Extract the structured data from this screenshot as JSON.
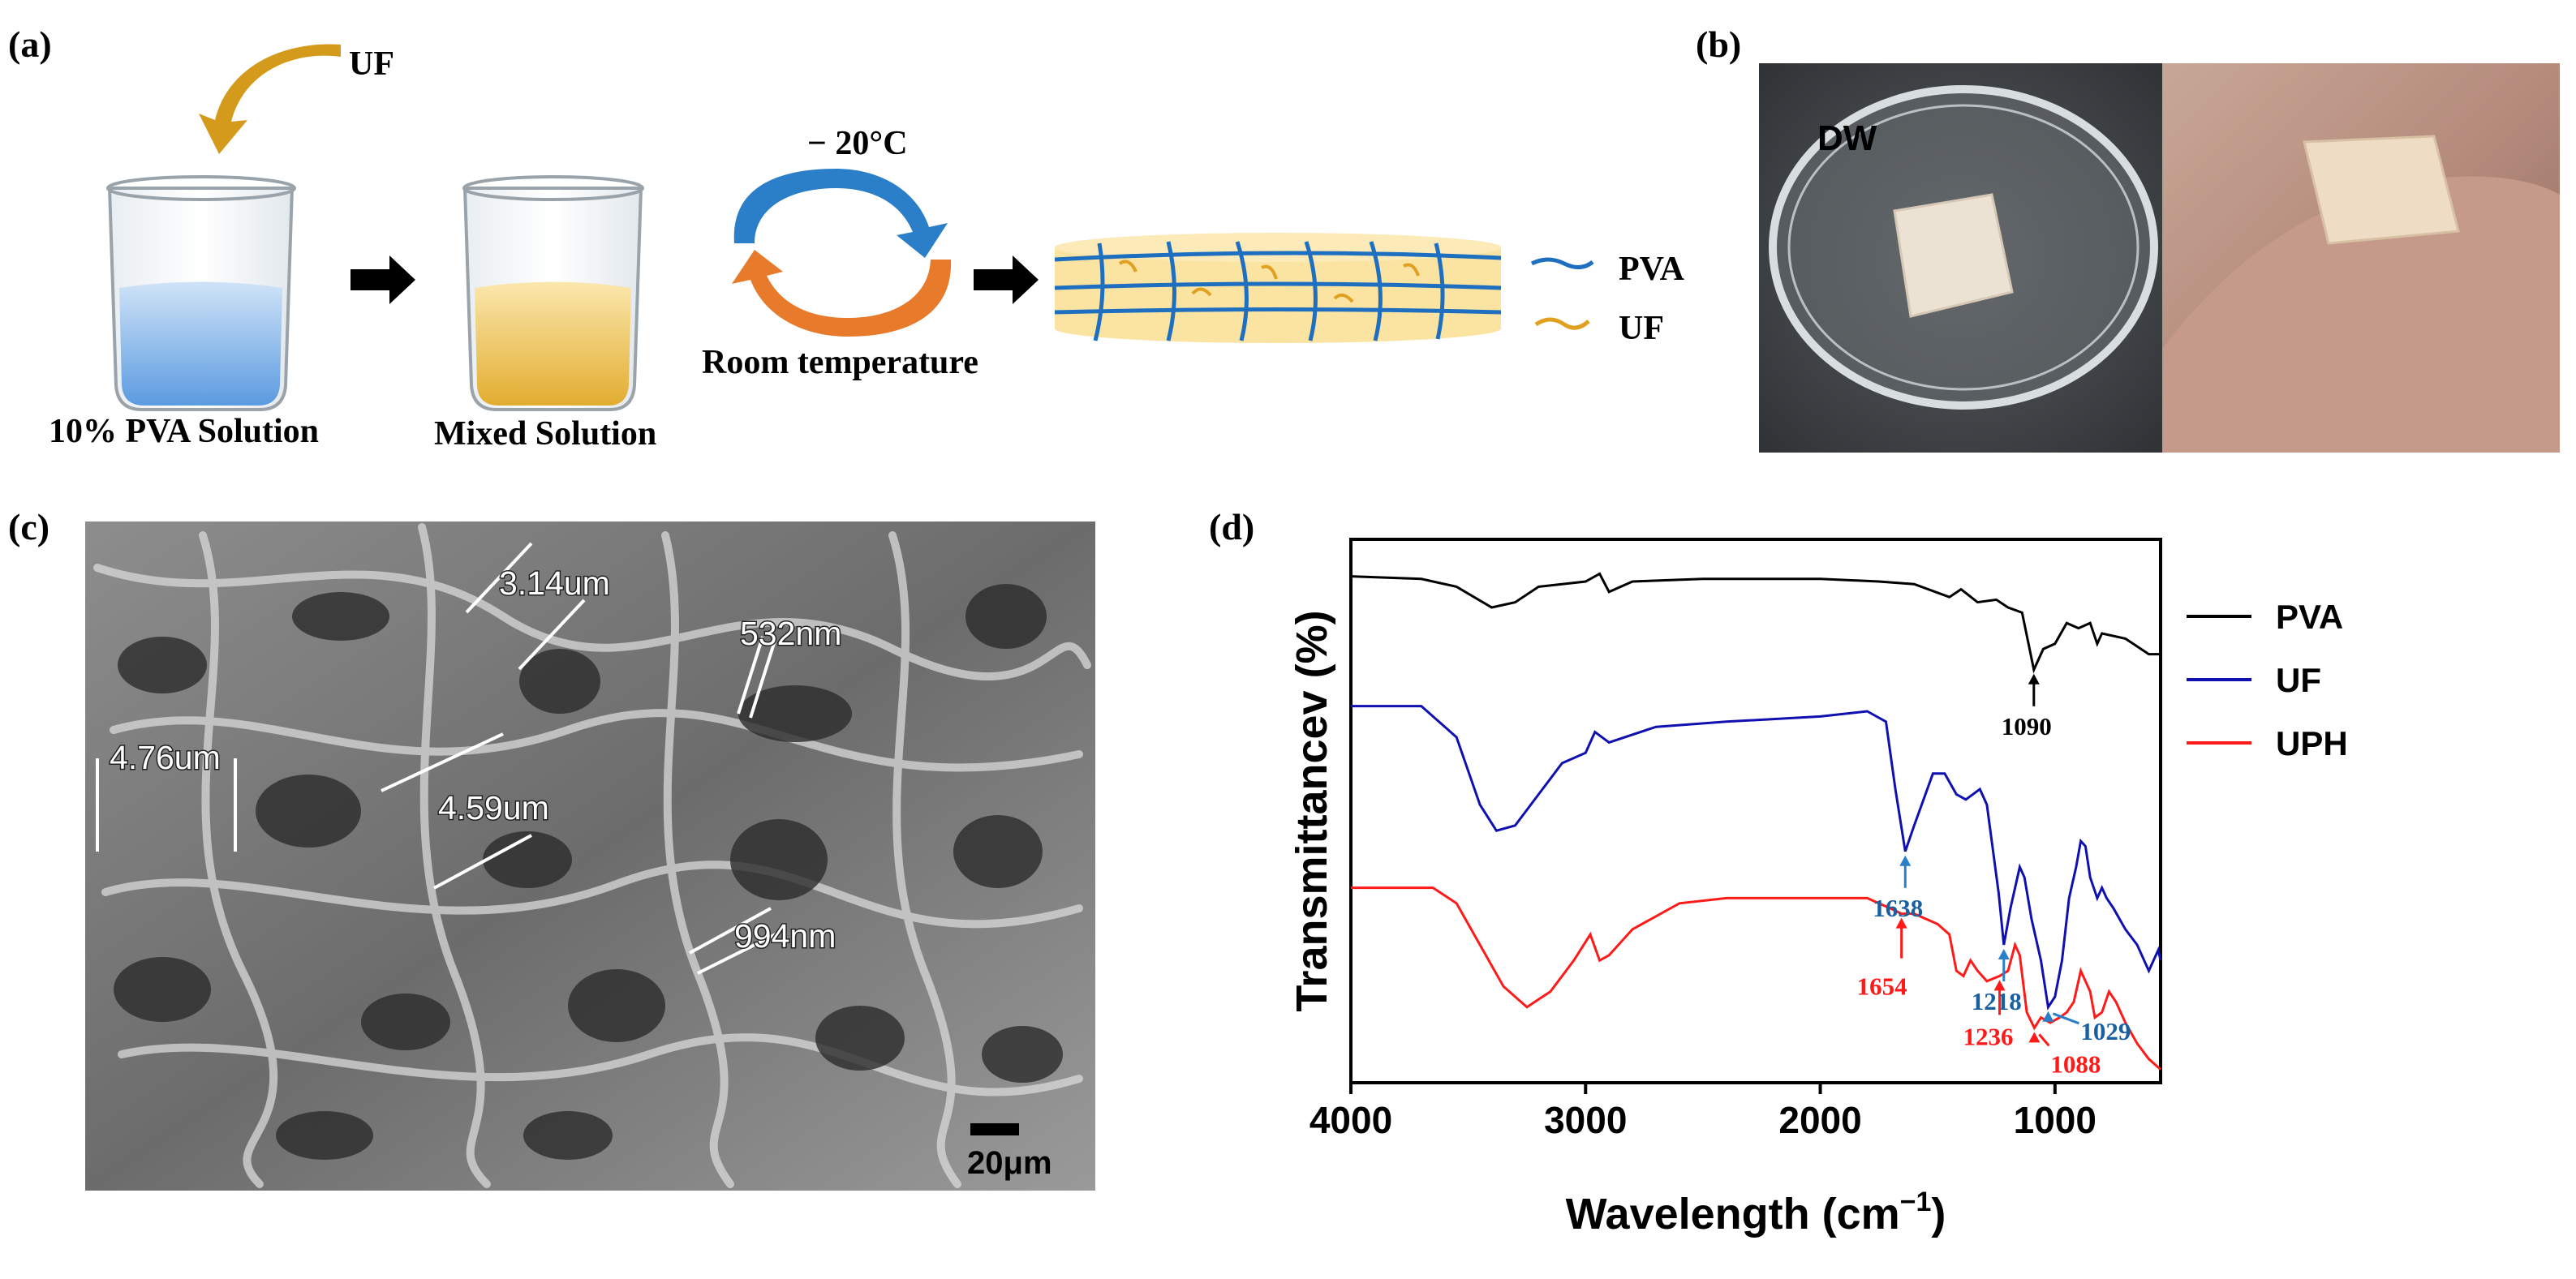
{
  "panels": {
    "a": {
      "label": "(a)",
      "additive": "UF",
      "beaker1_label": "10% PVA Solution",
      "beaker2_label": "Mixed Solution",
      "cycle_top": "− 20°C",
      "cycle_bottom": "Room temperature",
      "legend": [
        {
          "name": "PVA",
          "color": "#1f6fc0"
        },
        {
          "name": "UF",
          "color": "#e0a020"
        }
      ]
    },
    "b": {
      "label": "(b)",
      "dish_label": "DW"
    },
    "c": {
      "label": "(c)",
      "measurements": [
        "3.14um",
        "532nm",
        "4.76um",
        "4.59um",
        "994nm"
      ],
      "scale_bar": "20μm"
    },
    "d": {
      "label": "(d)"
    }
  },
  "chart_data": {
    "type": "line",
    "xlabel_main": "Wavelength (cm",
    "xlabel_sup": "−1",
    "xlabel_close": ")",
    "ylabel": "Transmittancev (%)",
    "xlim": [
      4000,
      550
    ],
    "x_reversed": true,
    "xticks": [
      4000,
      3000,
      2000,
      1000
    ],
    "legend_position": "right",
    "series": [
      {
        "name": "PVA",
        "color": "#000000",
        "points": [
          [
            4000,
            0.04
          ],
          [
            3700,
            0.045
          ],
          [
            3550,
            0.06
          ],
          [
            3400,
            0.1
          ],
          [
            3300,
            0.09
          ],
          [
            3200,
            0.06
          ],
          [
            3000,
            0.05
          ],
          [
            2940,
            0.035
          ],
          [
            2900,
            0.07
          ],
          [
            2800,
            0.05
          ],
          [
            2500,
            0.045
          ],
          [
            2000,
            0.045
          ],
          [
            1750,
            0.05
          ],
          [
            1600,
            0.055
          ],
          [
            1450,
            0.08
          ],
          [
            1400,
            0.065
          ],
          [
            1330,
            0.09
          ],
          [
            1250,
            0.085
          ],
          [
            1200,
            0.1
          ],
          [
            1140,
            0.11
          ],
          [
            1090,
            0.22
          ],
          [
            1050,
            0.18
          ],
          [
            1000,
            0.17
          ],
          [
            950,
            0.13
          ],
          [
            900,
            0.14
          ],
          [
            850,
            0.13
          ],
          [
            820,
            0.17
          ],
          [
            800,
            0.15
          ],
          [
            700,
            0.16
          ],
          [
            600,
            0.19
          ],
          [
            550,
            0.19
          ]
        ],
        "annotations": [
          {
            "x": 1090,
            "text": "1090"
          }
        ]
      },
      {
        "name": "UF",
        "color": "#1010b0",
        "points": [
          [
            4000,
            0.29
          ],
          [
            3700,
            0.29
          ],
          [
            3550,
            0.35
          ],
          [
            3450,
            0.48
          ],
          [
            3380,
            0.53
          ],
          [
            3300,
            0.52
          ],
          [
            3200,
            0.46
          ],
          [
            3100,
            0.4
          ],
          [
            3000,
            0.38
          ],
          [
            2960,
            0.34
          ],
          [
            2900,
            0.36
          ],
          [
            2700,
            0.33
          ],
          [
            2400,
            0.32
          ],
          [
            2000,
            0.31
          ],
          [
            1800,
            0.3
          ],
          [
            1720,
            0.32
          ],
          [
            1680,
            0.45
          ],
          [
            1638,
            0.57
          ],
          [
            1600,
            0.52
          ],
          [
            1520,
            0.42
          ],
          [
            1470,
            0.42
          ],
          [
            1420,
            0.46
          ],
          [
            1380,
            0.47
          ],
          [
            1320,
            0.45
          ],
          [
            1290,
            0.48
          ],
          [
            1240,
            0.65
          ],
          [
            1218,
            0.75
          ],
          [
            1190,
            0.68
          ],
          [
            1150,
            0.6
          ],
          [
            1130,
            0.62
          ],
          [
            1100,
            0.7
          ],
          [
            1060,
            0.78
          ],
          [
            1029,
            0.87
          ],
          [
            1000,
            0.85
          ],
          [
            970,
            0.78
          ],
          [
            940,
            0.66
          ],
          [
            910,
            0.6
          ],
          [
            890,
            0.55
          ],
          [
            870,
            0.56
          ],
          [
            850,
            0.62
          ],
          [
            820,
            0.66
          ],
          [
            800,
            0.64
          ],
          [
            780,
            0.66
          ],
          [
            750,
            0.68
          ],
          [
            700,
            0.72
          ],
          [
            650,
            0.75
          ],
          [
            600,
            0.8
          ],
          [
            560,
            0.76
          ],
          [
            550,
            0.78
          ]
        ],
        "annotations": [
          {
            "x": 1638,
            "text": "1638"
          },
          {
            "x": 1218,
            "text": "1218"
          },
          {
            "x": 1029,
            "text": "1029"
          }
        ]
      },
      {
        "name": "UPH",
        "color": "#ff1a1a",
        "points": [
          [
            4000,
            0.64
          ],
          [
            3650,
            0.64
          ],
          [
            3550,
            0.67
          ],
          [
            3450,
            0.75
          ],
          [
            3350,
            0.83
          ],
          [
            3250,
            0.87
          ],
          [
            3150,
            0.84
          ],
          [
            3050,
            0.78
          ],
          [
            2980,
            0.73
          ],
          [
            2940,
            0.78
          ],
          [
            2900,
            0.77
          ],
          [
            2800,
            0.72
          ],
          [
            2600,
            0.67
          ],
          [
            2400,
            0.66
          ],
          [
            2000,
            0.66
          ],
          [
            1800,
            0.66
          ],
          [
            1700,
            0.68
          ],
          [
            1654,
            0.69
          ],
          [
            1600,
            0.69
          ],
          [
            1500,
            0.71
          ],
          [
            1450,
            0.73
          ],
          [
            1420,
            0.8
          ],
          [
            1390,
            0.81
          ],
          [
            1360,
            0.78
          ],
          [
            1330,
            0.8
          ],
          [
            1290,
            0.82
          ],
          [
            1236,
            0.81
          ],
          [
            1200,
            0.8
          ],
          [
            1170,
            0.75
          ],
          [
            1150,
            0.77
          ],
          [
            1120,
            0.88
          ],
          [
            1088,
            0.91
          ],
          [
            1060,
            0.89
          ],
          [
            1020,
            0.9
          ],
          [
            980,
            0.89
          ],
          [
            950,
            0.88
          ],
          [
            920,
            0.86
          ],
          [
            890,
            0.8
          ],
          [
            870,
            0.82
          ],
          [
            850,
            0.84
          ],
          [
            830,
            0.89
          ],
          [
            800,
            0.88
          ],
          [
            770,
            0.84
          ],
          [
            740,
            0.86
          ],
          [
            700,
            0.9
          ],
          [
            650,
            0.94
          ],
          [
            600,
            0.97
          ],
          [
            550,
            0.99
          ]
        ],
        "annotations": [
          {
            "x": 1654,
            "text": "1654"
          },
          {
            "x": 1236,
            "text": "1236"
          },
          {
            "x": 1088,
            "text": "1088"
          }
        ]
      }
    ]
  }
}
